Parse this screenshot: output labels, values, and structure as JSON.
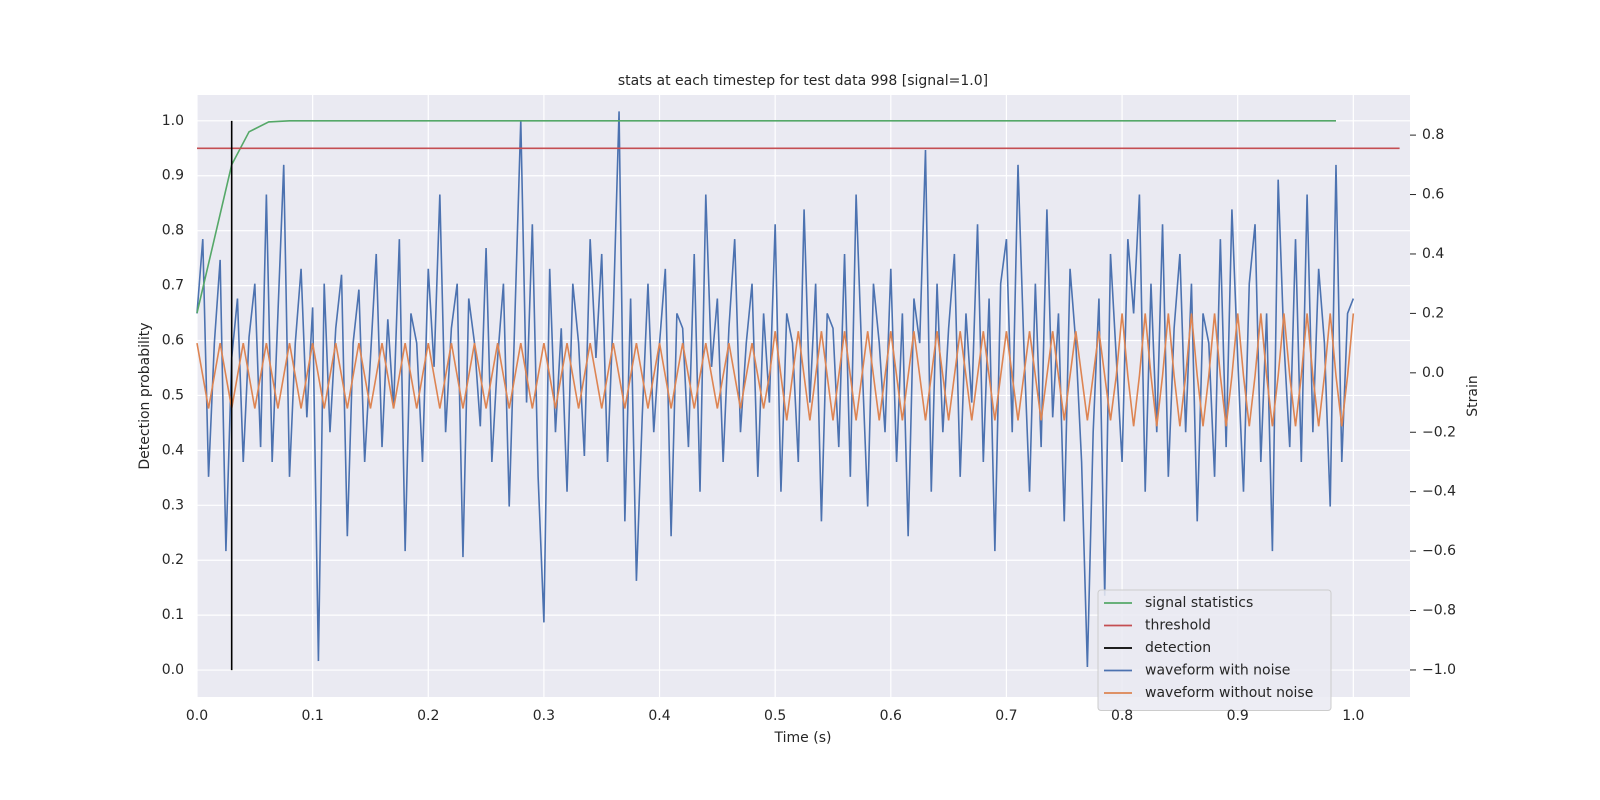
{
  "chart_data": {
    "type": "line",
    "title": "stats at each timestep for test data 998 [signal=1.0]",
    "x_label": "Time (s)",
    "y_label": "Detection probability",
    "y2_label": "Strain",
    "xlim": [
      0,
      1.049
    ],
    "ylim": [
      -0.049,
      1.047
    ],
    "y2lim": [
      -1.091,
      0.935
    ],
    "xticks": [
      {
        "value": 0,
        "label": "0.0"
      },
      0.1,
      0.2,
      0.3,
      0.4,
      0.5,
      0.6,
      0.7,
      0.8,
      0.9,
      {
        "value": 1,
        "label": "1.0"
      }
    ],
    "yticks": [
      {
        "value": 0,
        "label": "0.0"
      },
      0.1,
      0.2,
      0.3,
      0.4,
      0.5,
      0.6,
      0.7,
      0.8,
      0.9,
      {
        "value": 1,
        "label": "1.0"
      }
    ],
    "y2ticks": [
      {
        "value": -1,
        "label": "−1.0"
      },
      {
        "value": -0.8,
        "label": "−0.8"
      },
      {
        "value": -0.6,
        "label": "−0.6"
      },
      {
        "value": -0.4,
        "label": "−0.4"
      },
      {
        "value": -0.2,
        "label": "−0.2"
      },
      {
        "value": 0,
        "label": "0.0"
      },
      0.2,
      0.4,
      0.6,
      0.8
    ],
    "grid": true,
    "legend": "lower right",
    "x": [
      0,
      0.005,
      0.01,
      0.015,
      0.02,
      0.025,
      0.03,
      0.035,
      0.04,
      0.045,
      0.05,
      0.055,
      0.06,
      0.065,
      0.07,
      0.075,
      0.08,
      0.085,
      0.09,
      0.095,
      0.1,
      0.105,
      0.11,
      0.115,
      0.12,
      0.125,
      0.13,
      0.135,
      0.14,
      0.145,
      0.15,
      0.155,
      0.16,
      0.165,
      0.17,
      0.175,
      0.18,
      0.185,
      0.19,
      0.195,
      0.2,
      0.205,
      0.21,
      0.215,
      0.22,
      0.225,
      0.23,
      0.235,
      0.24,
      0.245,
      0.25,
      0.255,
      0.26,
      0.265,
      0.27,
      0.275,
      0.28,
      0.285,
      0.29,
      0.295,
      0.3,
      0.305,
      0.31,
      0.315,
      0.32,
      0.325,
      0.33,
      0.335,
      0.34,
      0.345,
      0.35,
      0.355,
      0.36,
      0.365,
      0.37,
      0.375,
      0.38,
      0.385,
      0.39,
      0.395,
      0.4,
      0.405,
      0.41,
      0.415,
      0.42,
      0.425,
      0.43,
      0.435,
      0.44,
      0.445,
      0.45,
      0.455,
      0.46,
      0.465,
      0.47,
      0.475,
      0.48,
      0.485,
      0.49,
      0.495,
      0.5,
      0.505,
      0.51,
      0.515,
      0.52,
      0.525,
      0.53,
      0.535,
      0.54,
      0.545,
      0.55,
      0.555,
      0.56,
      0.565,
      0.57,
      0.575,
      0.58,
      0.585,
      0.59,
      0.595,
      0.6,
      0.605,
      0.61,
      0.615,
      0.62,
      0.625,
      0.63,
      0.635,
      0.64,
      0.645,
      0.65,
      0.655,
      0.66,
      0.665,
      0.67,
      0.675,
      0.68,
      0.685,
      0.69,
      0.695,
      0.7,
      0.705,
      0.71,
      0.715,
      0.72,
      0.725,
      0.73,
      0.735,
      0.74,
      0.745,
      0.75,
      0.755,
      0.76,
      0.765,
      0.77,
      0.775,
      0.78,
      0.785,
      0.79,
      0.795,
      0.8,
      0.805,
      0.81,
      0.815,
      0.82,
      0.825,
      0.83,
      0.835,
      0.84,
      0.845,
      0.85,
      0.855,
      0.86,
      0.865,
      0.87,
      0.875,
      0.88,
      0.885,
      0.89,
      0.895,
      0.9,
      0.905,
      0.91,
      0.915,
      0.92,
      0.925,
      0.93,
      0.935,
      0.94,
      0.945,
      0.95,
      0.955,
      0.96,
      0.965,
      0.97,
      0.975,
      0.98,
      0.985,
      0.99,
      0.995,
      1
    ],
    "series": [
      {
        "name": "signal statistics",
        "color": "#55a868",
        "x": [
          0,
          0.03,
          0.045,
          0.062,
          0.08,
          0.985
        ],
        "values": [
          0.65,
          0.92,
          0.98,
          0.998,
          1.0,
          1.0
        ]
      },
      {
        "name": "threshold",
        "color": "#c44e52",
        "x": [
          0,
          1.04
        ],
        "values": [
          0.95,
          0.95
        ]
      },
      {
        "name": "detection",
        "color": "#000000",
        "x": [
          0.03,
          0.03
        ],
        "values": [
          0,
          1.0
        ]
      },
      {
        "name": "waveform with noise",
        "color": "#4c72b0",
        "axis": "y2",
        "values": [
          0.2,
          0.45,
          -0.35,
          0.1,
          0.38,
          -0.6,
          0.05,
          0.25,
          -0.3,
          0.12,
          0.3,
          -0.25,
          0.6,
          -0.3,
          0.2,
          0.7,
          -0.35,
          0.1,
          0.35,
          -0.15,
          0.22,
          -0.97,
          0.3,
          -0.2,
          0.15,
          0.33,
          -0.55,
          0.1,
          0.28,
          -0.3,
          0.05,
          0.4,
          -0.25,
          0.18,
          -0.12,
          0.45,
          -0.6,
          0.2,
          0.1,
          -0.3,
          0.35,
          0.02,
          0.6,
          -0.2,
          0.15,
          0.3,
          -0.62,
          0.25,
          0.1,
          -0.18,
          0.42,
          -0.3,
          0.05,
          0.3,
          -0.45,
          0.2,
          0.85,
          -0.1,
          0.5,
          -0.35,
          -0.84,
          0.35,
          -0.2,
          0.15,
          -0.4,
          0.3,
          0.1,
          -0.28,
          0.45,
          0.05,
          0.4,
          -0.3,
          0.2,
          0.88,
          -0.5,
          0.25,
          -0.7,
          -0.15,
          0.3,
          -0.2,
          0.1,
          0.35,
          -0.55,
          0.2,
          0.15,
          -0.25,
          0.4,
          -0.4,
          0.6,
          0.02,
          0.25,
          -0.3,
          0.15,
          0.45,
          -0.2,
          0.1,
          0.3,
          -0.35,
          0.2,
          -0.1,
          0.5,
          -0.4,
          0.2,
          0.1,
          -0.3,
          0.55,
          -0.1,
          0.3,
          -0.5,
          0.2,
          0.15,
          -0.25,
          0.4,
          -0.35,
          0.6,
          0.05,
          -0.45,
          0.3,
          0.1,
          -0.2,
          0.35,
          -0.3,
          0.2,
          -0.55,
          0.25,
          0.1,
          0.75,
          -0.4,
          0.3,
          -0.2,
          0.15,
          0.4,
          -0.35,
          0.2,
          -0.1,
          0.5,
          -0.3,
          0.25,
          -0.6,
          0.3,
          0.45,
          -0.2,
          0.7,
          0.1,
          -0.4,
          0.3,
          -0.25,
          0.55,
          -0.15,
          0.2,
          -0.5,
          0.35,
          0.1,
          -0.3,
          -0.99,
          -0.2,
          0.25,
          -0.75,
          0.4,
          0.05,
          -0.3,
          0.45,
          0.2,
          0.6,
          -0.4,
          0.3,
          -0.2,
          0.5,
          -0.35,
          0.15,
          0.4,
          -0.2,
          0.3,
          -0.5,
          0.2,
          0.1,
          -0.35,
          0.45,
          -0.25,
          0.55,
          0.05,
          -0.4,
          0.3,
          0.5,
          -0.3,
          0.2,
          -0.6,
          0.65,
          0.1,
          -0.25,
          0.45,
          -0.3,
          0.6,
          -0.2,
          0.35,
          0.1,
          -0.45,
          0.7,
          -0.3,
          0.2,
          0.25
        ]
      },
      {
        "name": "waveform without noise",
        "color": "#dd8452",
        "axis": "y2",
        "values": [
          0.1,
          -0.01,
          -0.12,
          -0.01,
          0.1,
          -0.01,
          -0.12,
          -0.01,
          0.1,
          -0.01,
          -0.12,
          -0.01,
          0.1,
          -0.01,
          -0.12,
          -0.01,
          0.1,
          -0.01,
          -0.12,
          -0.01,
          0.1,
          -0.01,
          -0.12,
          -0.01,
          0.1,
          -0.01,
          -0.12,
          -0.01,
          0.1,
          -0.01,
          -0.12,
          -0.01,
          0.1,
          -0.01,
          -0.12,
          -0.01,
          0.1,
          -0.01,
          -0.12,
          -0.01,
          0.1,
          -0.01,
          -0.12,
          -0.01,
          0.1,
          -0.01,
          -0.12,
          -0.01,
          0.1,
          -0.01,
          -0.12,
          -0.01,
          0.1,
          -0.01,
          -0.12,
          -0.01,
          0.1,
          -0.01,
          -0.12,
          -0.01,
          0.1,
          -0.01,
          -0.12,
          -0.01,
          0.1,
          -0.01,
          -0.12,
          -0.01,
          0.1,
          -0.01,
          -0.12,
          -0.01,
          0.1,
          -0.01,
          -0.12,
          -0.01,
          0.1,
          -0.01,
          -0.12,
          -0.01,
          0.1,
          -0.01,
          -0.12,
          -0.01,
          0.1,
          -0.01,
          -0.12,
          -0.01,
          0.1,
          -0.01,
          -0.12,
          -0.01,
          0.1,
          -0.01,
          -0.12,
          -0.01,
          0.1,
          -0.01,
          -0.12,
          -0.01,
          0.14,
          -0.01,
          -0.16,
          -0.01,
          0.14,
          -0.01,
          -0.16,
          -0.01,
          0.14,
          -0.01,
          -0.16,
          -0.01,
          0.14,
          -0.01,
          -0.16,
          -0.01,
          0.14,
          -0.01,
          -0.16,
          -0.01,
          0.14,
          -0.01,
          -0.16,
          -0.01,
          0.14,
          -0.01,
          -0.16,
          -0.01,
          0.14,
          -0.01,
          -0.16,
          -0.01,
          0.14,
          -0.01,
          -0.16,
          -0.01,
          0.14,
          -0.01,
          -0.16,
          -0.01,
          0.14,
          -0.01,
          -0.16,
          -0.01,
          0.14,
          -0.01,
          -0.16,
          -0.01,
          0.14,
          -0.01,
          -0.16,
          -0.01,
          0.14,
          -0.01,
          -0.16,
          -0.01,
          0.14,
          -0.01,
          -0.16,
          -0.01,
          0.2,
          -0.01,
          -0.18,
          -0.01,
          0.2,
          -0.01,
          -0.18,
          -0.01,
          0.2,
          -0.01,
          -0.18,
          -0.01,
          0.2,
          -0.01,
          -0.18,
          -0.01,
          0.2,
          -0.01,
          -0.18,
          -0.01,
          0.2,
          -0.01,
          -0.18,
          -0.01,
          0.2,
          -0.01,
          -0.18,
          -0.01,
          0.2,
          -0.01,
          -0.18,
          -0.01,
          0.2,
          -0.01,
          -0.18,
          -0.01,
          0.2,
          -0.01,
          -0.18,
          -0.01,
          0.2
        ]
      }
    ]
  }
}
